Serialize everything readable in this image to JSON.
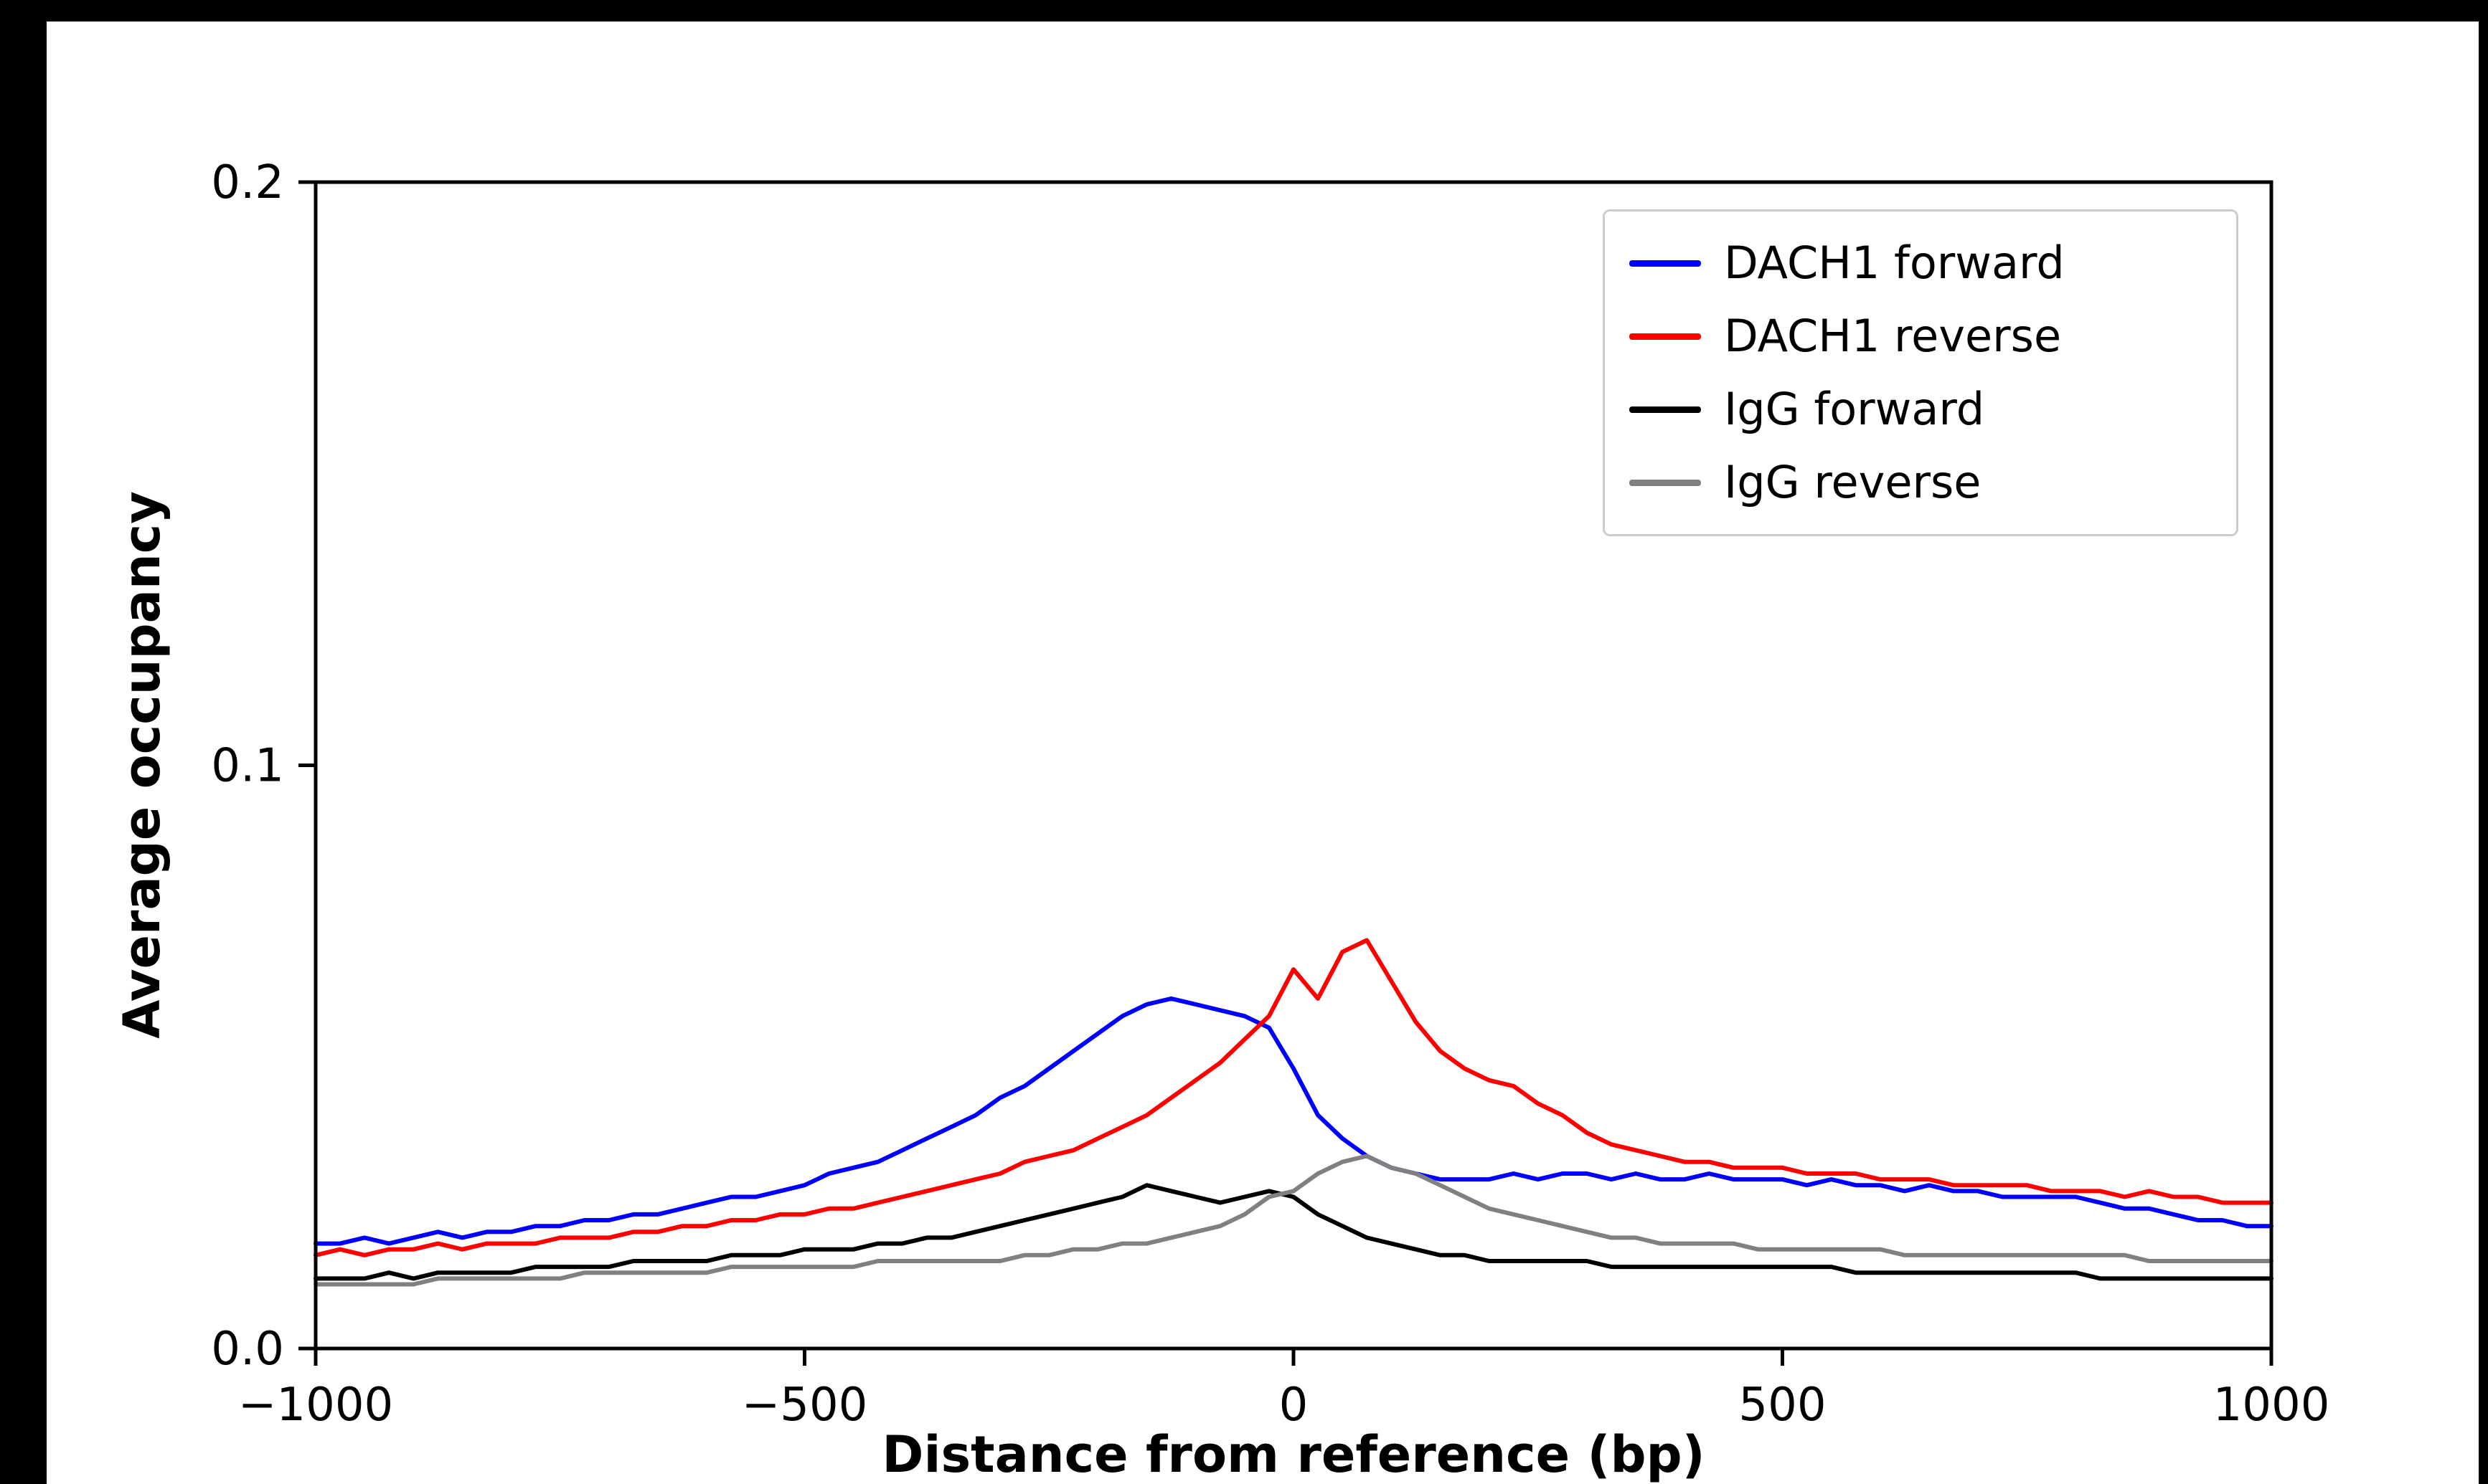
{
  "figure": {
    "page_background": "#000000",
    "canvas_background": "#ffffff",
    "legend_border_color": "#cccccc"
  },
  "chart_data": {
    "type": "line",
    "title": "",
    "xlabel": "Distance from reference (bp)",
    "ylabel": "Average occupancy",
    "xlim": [
      -1000,
      1000
    ],
    "ylim": [
      0,
      0.2
    ],
    "grid": false,
    "legend_position": "upper right",
    "x_ticks": [
      -1000,
      -500,
      0,
      500,
      1000
    ],
    "x_tick_labels": [
      "−1000",
      "−500",
      "0",
      "500",
      "1000"
    ],
    "y_ticks": [
      0,
      0.1,
      0.2
    ],
    "y_tick_labels": [
      "0.0",
      "0.1",
      "0.2"
    ],
    "x": [
      -1000,
      -975,
      -950,
      -925,
      -900,
      -875,
      -850,
      -825,
      -800,
      -775,
      -750,
      -725,
      -700,
      -675,
      -650,
      -625,
      -600,
      -575,
      -550,
      -525,
      -500,
      -475,
      -450,
      -425,
      -400,
      -375,
      -350,
      -325,
      -300,
      -275,
      -250,
      -225,
      -200,
      -175,
      -150,
      -125,
      -100,
      -75,
      -50,
      -25,
      0,
      25,
      50,
      75,
      100,
      125,
      150,
      175,
      200,
      225,
      250,
      275,
      300,
      325,
      350,
      375,
      400,
      425,
      450,
      475,
      500,
      525,
      550,
      575,
      600,
      625,
      650,
      675,
      700,
      725,
      750,
      775,
      800,
      825,
      850,
      875,
      900,
      925,
      950,
      975,
      1000
    ],
    "series": [
      {
        "name": "DACH1 forward",
        "color": "#0000ff",
        "values": [
          0.018,
          0.018,
          0.019,
          0.018,
          0.019,
          0.02,
          0.019,
          0.02,
          0.02,
          0.021,
          0.021,
          0.022,
          0.022,
          0.023,
          0.023,
          0.024,
          0.025,
          0.026,
          0.026,
          0.027,
          0.028,
          0.03,
          0.031,
          0.032,
          0.034,
          0.036,
          0.038,
          0.04,
          0.043,
          0.045,
          0.048,
          0.051,
          0.054,
          0.057,
          0.059,
          0.06,
          0.059,
          0.058,
          0.057,
          0.055,
          0.048,
          0.04,
          0.036,
          0.033,
          0.031,
          0.03,
          0.029,
          0.029,
          0.029,
          0.03,
          0.029,
          0.03,
          0.03,
          0.029,
          0.03,
          0.029,
          0.029,
          0.03,
          0.029,
          0.029,
          0.029,
          0.028,
          0.029,
          0.028,
          0.028,
          0.027,
          0.028,
          0.027,
          0.027,
          0.026,
          0.026,
          0.026,
          0.026,
          0.025,
          0.024,
          0.024,
          0.023,
          0.022,
          0.022,
          0.021,
          0.021
        ]
      },
      {
        "name": "DACH1 reverse",
        "color": "#ff0000",
        "values": [
          0.016,
          0.017,
          0.016,
          0.017,
          0.017,
          0.018,
          0.017,
          0.018,
          0.018,
          0.018,
          0.019,
          0.019,
          0.019,
          0.02,
          0.02,
          0.021,
          0.021,
          0.022,
          0.022,
          0.023,
          0.023,
          0.024,
          0.024,
          0.025,
          0.026,
          0.027,
          0.028,
          0.029,
          0.03,
          0.032,
          0.033,
          0.034,
          0.036,
          0.038,
          0.04,
          0.043,
          0.046,
          0.049,
          0.053,
          0.057,
          0.065,
          0.06,
          0.068,
          0.07,
          0.063,
          0.056,
          0.051,
          0.048,
          0.046,
          0.045,
          0.042,
          0.04,
          0.037,
          0.035,
          0.034,
          0.033,
          0.032,
          0.032,
          0.031,
          0.031,
          0.031,
          0.03,
          0.03,
          0.03,
          0.029,
          0.029,
          0.029,
          0.028,
          0.028,
          0.028,
          0.028,
          0.027,
          0.027,
          0.027,
          0.026,
          0.027,
          0.026,
          0.026,
          0.025,
          0.025,
          0.025
        ]
      },
      {
        "name": "IgG forward",
        "color": "#000000",
        "values": [
          0.012,
          0.012,
          0.012,
          0.013,
          0.012,
          0.013,
          0.013,
          0.013,
          0.013,
          0.014,
          0.014,
          0.014,
          0.014,
          0.015,
          0.015,
          0.015,
          0.015,
          0.016,
          0.016,
          0.016,
          0.017,
          0.017,
          0.017,
          0.018,
          0.018,
          0.019,
          0.019,
          0.02,
          0.021,
          0.022,
          0.023,
          0.024,
          0.025,
          0.026,
          0.028,
          0.027,
          0.026,
          0.025,
          0.026,
          0.027,
          0.026,
          0.023,
          0.021,
          0.019,
          0.018,
          0.017,
          0.016,
          0.016,
          0.015,
          0.015,
          0.015,
          0.015,
          0.015,
          0.014,
          0.014,
          0.014,
          0.014,
          0.014,
          0.014,
          0.014,
          0.014,
          0.014,
          0.014,
          0.013,
          0.013,
          0.013,
          0.013,
          0.013,
          0.013,
          0.013,
          0.013,
          0.013,
          0.013,
          0.012,
          0.012,
          0.012,
          0.012,
          0.012,
          0.012,
          0.012,
          0.012
        ]
      },
      {
        "name": "IgG reverse",
        "color": "#808080",
        "values": [
          0.011,
          0.011,
          0.011,
          0.011,
          0.011,
          0.012,
          0.012,
          0.012,
          0.012,
          0.012,
          0.012,
          0.013,
          0.013,
          0.013,
          0.013,
          0.013,
          0.013,
          0.014,
          0.014,
          0.014,
          0.014,
          0.014,
          0.014,
          0.015,
          0.015,
          0.015,
          0.015,
          0.015,
          0.015,
          0.016,
          0.016,
          0.017,
          0.017,
          0.018,
          0.018,
          0.019,
          0.02,
          0.021,
          0.023,
          0.026,
          0.027,
          0.03,
          0.032,
          0.033,
          0.031,
          0.03,
          0.028,
          0.026,
          0.024,
          0.023,
          0.022,
          0.021,
          0.02,
          0.019,
          0.019,
          0.018,
          0.018,
          0.018,
          0.018,
          0.017,
          0.017,
          0.017,
          0.017,
          0.017,
          0.017,
          0.016,
          0.016,
          0.016,
          0.016,
          0.016,
          0.016,
          0.016,
          0.016,
          0.016,
          0.016,
          0.015,
          0.015,
          0.015,
          0.015,
          0.015,
          0.015
        ]
      }
    ]
  }
}
